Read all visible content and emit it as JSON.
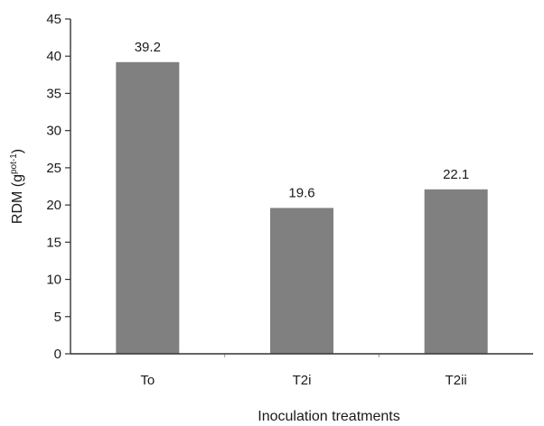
{
  "chart_data": {
    "type": "bar",
    "categories": [
      "To",
      "T2i",
      "T2ii"
    ],
    "values": [
      39.2,
      19.6,
      22.1
    ],
    "data_labels": [
      "39.2",
      "19.6",
      "22.1"
    ],
    "title": "",
    "xlabel": "Inoculation treatments",
    "ylabel_main": "RDM (g",
    "ylabel_sup": "pot-1",
    "ylabel_close": ")",
    "ylim": [
      0,
      45
    ],
    "yticks": [
      "0",
      "5",
      "10",
      "15",
      "20",
      "25",
      "30",
      "35",
      "40",
      "45"
    ],
    "grid": false,
    "legend": "none",
    "bar_color": "#808080"
  }
}
